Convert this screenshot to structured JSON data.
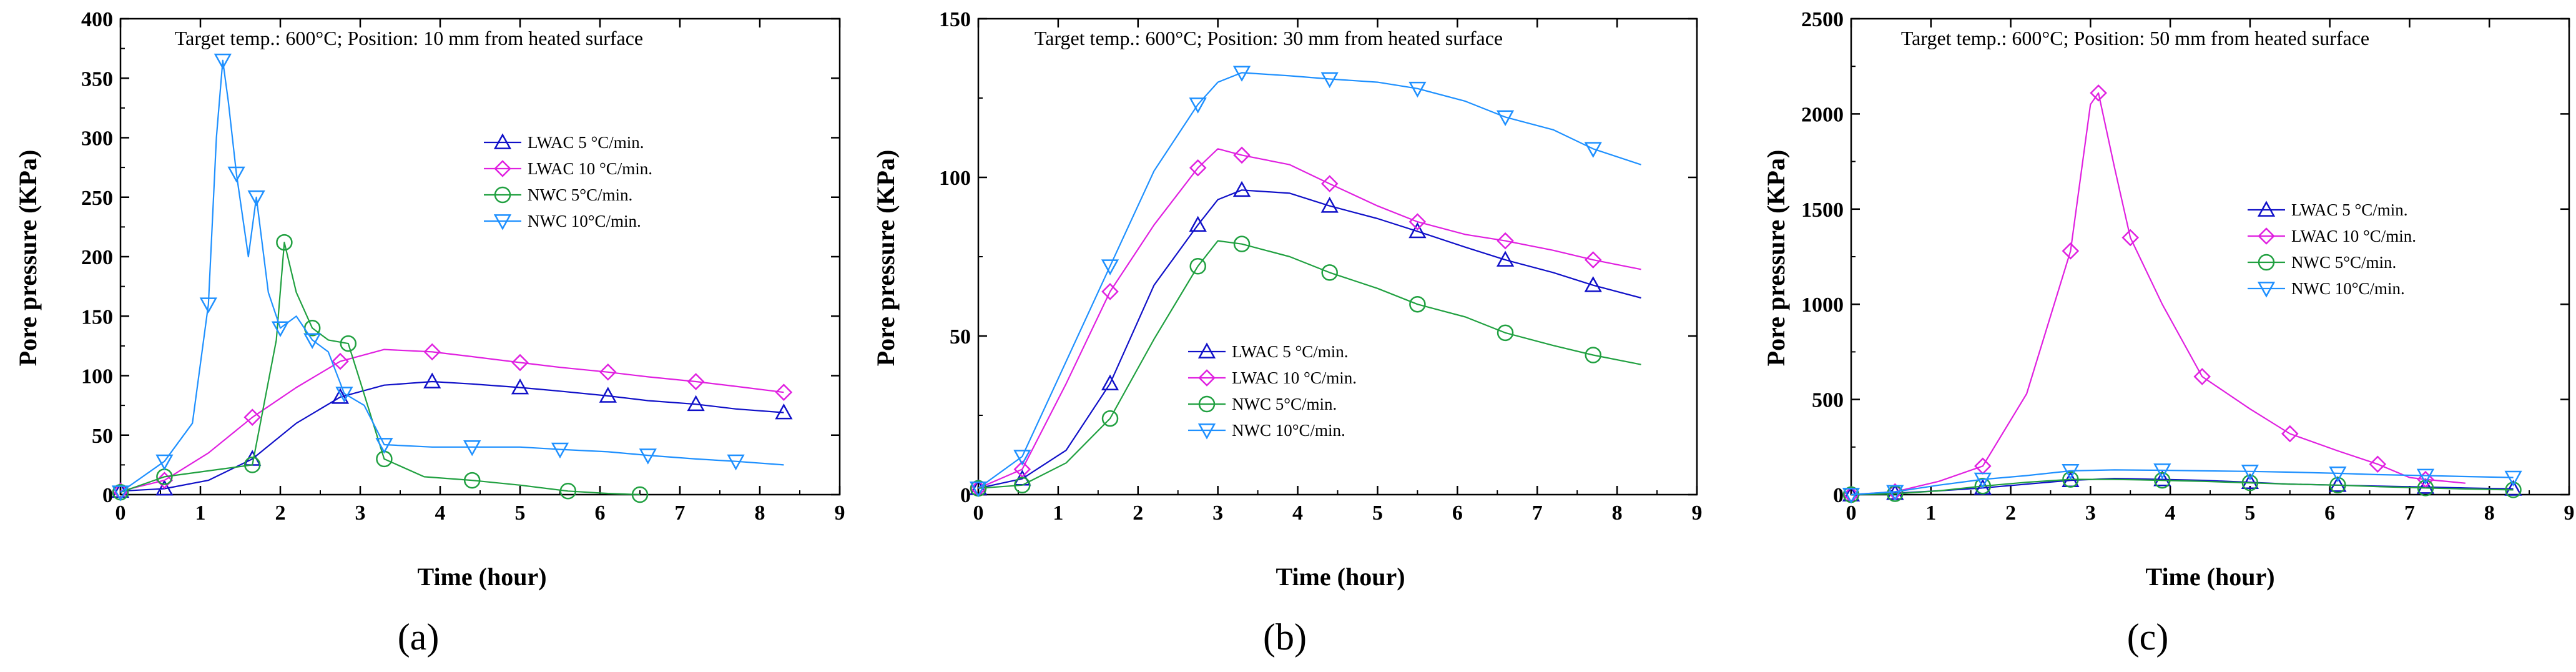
{
  "figure": {
    "panels": [
      {
        "id": "a",
        "panel_label": "(a)",
        "title": "Target temp.: 600°C; Position: 10 mm from heated surface",
        "xlabel": "Time (hour)",
        "ylabel": "Pore pressure (KPa)",
        "xlim": [
          0,
          9
        ],
        "ylim": [
          0,
          400
        ],
        "x_ticks": [
          0,
          1,
          2,
          3,
          4,
          5,
          6,
          7,
          8,
          9
        ],
        "y_ticks": [
          0,
          50,
          100,
          150,
          200,
          250,
          300,
          350,
          400
        ]
      },
      {
        "id": "b",
        "panel_label": "(b)",
        "title": "Target temp.: 600°C; Position: 30 mm from heated surface",
        "xlabel": "Time (hour)",
        "ylabel": "Pore pressure (KPa)",
        "xlim": [
          0,
          9
        ],
        "ylim": [
          0,
          150
        ],
        "x_ticks": [
          0,
          1,
          2,
          3,
          4,
          5,
          6,
          7,
          8,
          9
        ],
        "y_ticks": [
          0,
          50,
          100,
          150
        ]
      },
      {
        "id": "c",
        "panel_label": "(c)",
        "title": "Target temp.: 600°C; Position: 50 mm from heated surface",
        "xlabel": "Time (hour)",
        "ylabel": "Pore pressure (KPa)",
        "xlim": [
          0,
          9
        ],
        "ylim": [
          0,
          2500
        ],
        "x_ticks": [
          0,
          1,
          2,
          3,
          4,
          5,
          6,
          7,
          8,
          9
        ],
        "y_ticks": [
          0,
          500,
          1000,
          1500,
          2000,
          2500
        ]
      }
    ]
  },
  "chart_data": [
    {
      "type": "line",
      "title": "Target temp.: 600°C; Position: 10 mm from heated surface",
      "xlabel": "Time (hour)",
      "ylabel": "Pore pressure (KPa)",
      "xlim": [
        0,
        9
      ],
      "ylim": [
        0,
        400
      ],
      "grid": false,
      "legend_position": "center-right",
      "series": [
        {
          "name": "LWAC 5 °C/min.",
          "color": "#1010c8",
          "marker": "triangle-up",
          "x": [
            0,
            0.55,
            1.1,
            1.65,
            2.2,
            2.75,
            3.3,
            3.9,
            4.4,
            5.0,
            5.5,
            6.1,
            6.6,
            7.2,
            7.7,
            8.3
          ],
          "y": [
            3,
            5,
            12,
            30,
            60,
            82,
            92,
            95,
            93,
            90,
            87,
            83,
            79,
            76,
            72,
            69
          ]
        },
        {
          "name": "LWAC 10 °C/min.",
          "color": "#e020e0",
          "marker": "diamond",
          "x": [
            0,
            0.55,
            1.1,
            1.65,
            2.2,
            2.75,
            3.3,
            3.9,
            4.4,
            5.0,
            5.5,
            6.1,
            6.6,
            7.2,
            7.7,
            8.3
          ],
          "y": [
            3,
            12,
            35,
            65,
            90,
            112,
            122,
            120,
            116,
            111,
            107,
            103,
            99,
            95,
            91,
            86
          ]
        },
        {
          "name": "NWC 5°C/min.",
          "color": "#20a040",
          "marker": "circle",
          "x": [
            0,
            0.55,
            1.1,
            1.65,
            1.95,
            2.05,
            2.2,
            2.4,
            2.6,
            2.85,
            3.0,
            3.3,
            3.8,
            4.4,
            5.0,
            5.6,
            6.1,
            6.5
          ],
          "y": [
            2,
            15,
            20,
            25,
            130,
            212,
            170,
            140,
            130,
            127,
            95,
            30,
            15,
            12,
            8,
            3,
            1,
            0
          ]
        },
        {
          "name": "NWC 10°C/min.",
          "color": "#1e90ff",
          "marker": "triangle-down",
          "x": [
            0,
            0.55,
            0.9,
            1.1,
            1.2,
            1.28,
            1.35,
            1.45,
            1.6,
            1.7,
            1.85,
            2.0,
            2.2,
            2.4,
            2.6,
            2.8,
            3.05,
            3.3,
            3.9,
            4.4,
            5.0,
            5.5,
            6.1,
            6.6,
            7.2,
            7.7,
            8.3
          ],
          "y": [
            2,
            28,
            60,
            160,
            300,
            365,
            330,
            270,
            200,
            250,
            170,
            140,
            150,
            130,
            120,
            85,
            75,
            42,
            40,
            40,
            40,
            38,
            36,
            33,
            30,
            28,
            25
          ]
        }
      ]
    },
    {
      "type": "line",
      "title": "Target temp.: 600°C; Position: 30 mm from heated surface",
      "xlabel": "Time (hour)",
      "ylabel": "Pore pressure (KPa)",
      "xlim": [
        0,
        9
      ],
      "ylim": [
        0,
        150
      ],
      "grid": false,
      "legend_position": "bottom-center",
      "series": [
        {
          "name": "LWAC 5 °C/min.",
          "color": "#1010c8",
          "marker": "triangle-up",
          "x": [
            0,
            0.55,
            1.1,
            1.65,
            2.2,
            2.75,
            3.0,
            3.3,
            3.9,
            4.4,
            5.0,
            5.5,
            6.1,
            6.6,
            7.2,
            7.7,
            8.3
          ],
          "y": [
            2,
            5,
            14,
            35,
            66,
            85,
            93,
            96,
            95,
            91,
            87,
            83,
            78,
            74,
            70,
            66,
            62
          ]
        },
        {
          "name": "LWAC 10 °C/min.",
          "color": "#e020e0",
          "marker": "diamond",
          "x": [
            0,
            0.55,
            1.1,
            1.65,
            2.2,
            2.75,
            3.0,
            3.3,
            3.9,
            4.4,
            5.0,
            5.5,
            6.1,
            6.6,
            7.2,
            7.7,
            8.3
          ],
          "y": [
            2,
            8,
            35,
            64,
            85,
            103,
            109,
            107,
            104,
            98,
            91,
            86,
            82,
            80,
            77,
            74,
            71
          ]
        },
        {
          "name": "NWC 5°C/min.",
          "color": "#20a040",
          "marker": "circle",
          "x": [
            0,
            0.55,
            1.1,
            1.65,
            2.2,
            2.75,
            3.0,
            3.3,
            3.9,
            4.4,
            5.0,
            5.5,
            6.1,
            6.6,
            7.2,
            7.7,
            8.3
          ],
          "y": [
            2,
            3,
            10,
            24,
            49,
            72,
            80,
            79,
            75,
            70,
            65,
            60,
            56,
            51,
            47,
            44,
            41
          ]
        },
        {
          "name": "NWC 10°C/min.",
          "color": "#1e90ff",
          "marker": "triangle-down",
          "x": [
            0,
            0.55,
            1.1,
            1.65,
            2.2,
            2.75,
            3.0,
            3.3,
            3.9,
            4.4,
            5.0,
            5.5,
            6.1,
            6.6,
            7.2,
            7.7,
            8.3
          ],
          "y": [
            2,
            12,
            42,
            72,
            102,
            123,
            130,
            133,
            132,
            131,
            130,
            128,
            124,
            119,
            115,
            109,
            104
          ]
        }
      ]
    },
    {
      "type": "line",
      "title": "Target temp.: 600°C; Position: 50 mm from heated surface",
      "xlabel": "Time (hour)",
      "ylabel": "Pore pressure (KPa)",
      "xlim": [
        0,
        9
      ],
      "ylim": [
        0,
        2500
      ],
      "grid": false,
      "legend_position": "center-right",
      "series": [
        {
          "name": "LWAC 5 °C/min.",
          "color": "#1010c8",
          "marker": "triangle-up",
          "x": [
            0,
            0.55,
            1.1,
            1.65,
            2.2,
            2.75,
            3.3,
            3.9,
            4.4,
            5.0,
            5.5,
            6.1,
            6.6,
            7.2,
            7.7,
            8.3
          ],
          "y": [
            0,
            8,
            20,
            35,
            55,
            75,
            85,
            80,
            75,
            65,
            55,
            50,
            45,
            40,
            35,
            30
          ]
        },
        {
          "name": "LWAC 10 °C/min.",
          "color": "#e020e0",
          "marker": "diamond",
          "x": [
            0,
            0.55,
            1.1,
            1.65,
            2.2,
            2.75,
            3.0,
            3.1,
            3.3,
            3.5,
            3.9,
            4.4,
            5.0,
            5.5,
            6.1,
            6.6,
            7.0,
            7.2,
            7.7
          ],
          "y": [
            0,
            15,
            70,
            150,
            530,
            1280,
            2050,
            2110,
            1720,
            1350,
            1000,
            620,
            450,
            320,
            230,
            160,
            90,
            80,
            60
          ]
        },
        {
          "name": "NWC 5°C/min.",
          "color": "#20a040",
          "marker": "circle",
          "x": [
            0,
            0.55,
            1.1,
            1.65,
            2.2,
            2.75,
            3.3,
            3.9,
            4.4,
            5.0,
            5.5,
            6.1,
            6.6,
            7.2,
            7.7,
            8.3
          ],
          "y": [
            0,
            5,
            20,
            45,
            65,
            80,
            80,
            75,
            70,
            62,
            55,
            50,
            42,
            35,
            30,
            25
          ]
        },
        {
          "name": "NWC 10°C/min.",
          "color": "#1e90ff",
          "marker": "triangle-down",
          "x": [
            0,
            0.55,
            1.1,
            1.65,
            2.2,
            2.75,
            3.3,
            3.9,
            4.4,
            5.0,
            5.5,
            6.1,
            6.6,
            7.2,
            7.7,
            8.3
          ],
          "y": [
            0,
            15,
            50,
            80,
            100,
            125,
            130,
            128,
            125,
            122,
            118,
            112,
            105,
            100,
            95,
            90
          ]
        }
      ]
    }
  ]
}
